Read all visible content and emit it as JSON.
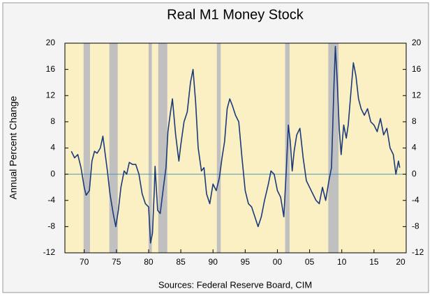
{
  "chart_data": {
    "type": "line",
    "title": "Real M1 Money Stock",
    "ylabel": "Annual Percent Change",
    "source": "Sources: Federal Reserve Board, CIM",
    "xlim": [
      1967,
      2020
    ],
    "xticks": [
      {
        "value": 1970,
        "label": "70"
      },
      {
        "value": 1975,
        "label": "75"
      },
      {
        "value": 1980,
        "label": "80"
      },
      {
        "value": 1985,
        "label": "85"
      },
      {
        "value": 1990,
        "label": "90"
      },
      {
        "value": 1995,
        "label": "95"
      },
      {
        "value": 2000,
        "label": "00"
      },
      {
        "value": 2005,
        "label": "05"
      },
      {
        "value": 2010,
        "label": "10"
      },
      {
        "value": 2015,
        "label": "15"
      },
      {
        "value": 2020,
        "label": "20"
      }
    ],
    "ylim": [
      -12,
      20
    ],
    "yticks": [
      -12,
      -8,
      -4,
      0,
      4,
      8,
      12,
      16,
      20
    ],
    "y2lim": [
      -12,
      20
    ],
    "y2ticks": [
      -12,
      -8,
      -4,
      0,
      4,
      8,
      12,
      16,
      20
    ],
    "background": "#fbefc4",
    "reference_line": {
      "value": 0,
      "color": "#4a9ab0"
    },
    "shaded_regions": {
      "color": "#c0c0c0",
      "ranges": [
        [
          1969.9,
          1970.9
        ],
        [
          1973.9,
          1975.2
        ],
        [
          1980.0,
          1980.5
        ],
        [
          1981.5,
          1982.9
        ],
        [
          1990.6,
          1991.2
        ],
        [
          2001.2,
          2001.9
        ],
        [
          2007.9,
          2009.5
        ]
      ]
    },
    "series": [
      {
        "color": "#1a3a7a",
        "x": [
          1968.0,
          1968.5,
          1969.0,
          1969.5,
          1970.0,
          1970.3,
          1970.8,
          1971.2,
          1971.6,
          1972.0,
          1972.5,
          1972.9,
          1973.2,
          1973.6,
          1974.0,
          1974.5,
          1974.9,
          1975.3,
          1975.7,
          1976.2,
          1976.6,
          1977.0,
          1977.5,
          1978.0,
          1978.5,
          1979.0,
          1979.5,
          1980.0,
          1980.3,
          1980.6,
          1980.9,
          1981.0,
          1981.4,
          1981.8,
          1982.3,
          1982.7,
          1983.0,
          1983.4,
          1983.7,
          1984.2,
          1984.7,
          1985.0,
          1985.5,
          1986.0,
          1986.5,
          1986.9,
          1987.3,
          1987.7,
          1988.2,
          1988.6,
          1989.0,
          1989.5,
          1990.0,
          1990.5,
          1991.0,
          1991.4,
          1991.8,
          1992.2,
          1992.6,
          1993.0,
          1993.5,
          1994.0,
          1994.5,
          1995.0,
          1995.5,
          1996.0,
          1996.5,
          1997.0,
          1997.5,
          1998.0,
          1998.6,
          1999.0,
          1999.5,
          2000.0,
          2000.5,
          2001.0,
          2001.4,
          2001.7,
          2002.0,
          2002.3,
          2002.6,
          2003.0,
          2003.5,
          2004.0,
          2004.5,
          2005.0,
          2005.5,
          2006.0,
          2006.5,
          2007.0,
          2007.5,
          2008.0,
          2008.4,
          2008.8,
          2009.0,
          2009.3,
          2009.6,
          2009.9,
          2010.3,
          2010.7,
          2011.0,
          2011.5,
          2011.8,
          2012.2,
          2012.6,
          2013.0,
          2013.5,
          2014.0,
          2014.5,
          2015.0,
          2015.5,
          2016.0,
          2016.5,
          2017.0,
          2017.5,
          2018.0,
          2018.4,
          2018.8,
          2019.0
        ],
        "values": [
          3.5,
          2.5,
          3.0,
          1.0,
          -2.0,
          -3.2,
          -2.5,
          2.0,
          3.5,
          3.2,
          4.0,
          5.8,
          3.5,
          0.5,
          -3.0,
          -6.0,
          -8.0,
          -5.5,
          -2.0,
          0.5,
          0.0,
          1.8,
          1.5,
          1.5,
          0.0,
          -3.0,
          -4.5,
          -5.0,
          -10.5,
          -9.0,
          -2.0,
          1.2,
          -5.5,
          -6.0,
          -2.0,
          1.0,
          6.5,
          9.5,
          11.5,
          6.0,
          2.0,
          4.5,
          8.0,
          9.5,
          14.0,
          16.0,
          11.0,
          4.0,
          0.5,
          1.0,
          -3.0,
          -4.5,
          -1.5,
          -2.5,
          -0.5,
          2.5,
          5.0,
          10.0,
          11.5,
          10.5,
          9.0,
          8.0,
          2.5,
          -2.5,
          -4.5,
          -5.0,
          -6.5,
          -8.0,
          -6.5,
          -4.0,
          -1.5,
          0.5,
          0.0,
          -2.5,
          -3.5,
          -6.5,
          1.0,
          7.5,
          5.0,
          0.5,
          3.5,
          6.0,
          7.0,
          2.5,
          -1.0,
          -2.0,
          -3.0,
          -4.0,
          -4.5,
          -2.0,
          -4.0,
          -1.0,
          1.0,
          14.0,
          19.5,
          14.0,
          7.0,
          3.0,
          7.5,
          5.5,
          7.5,
          13.5,
          17.0,
          15.0,
          11.5,
          10.0,
          9.0,
          10.0,
          8.0,
          7.5,
          6.5,
          8.5,
          6.0,
          7.0,
          4.0,
          3.0,
          0.0,
          2.0,
          1.0
        ]
      }
    ]
  }
}
